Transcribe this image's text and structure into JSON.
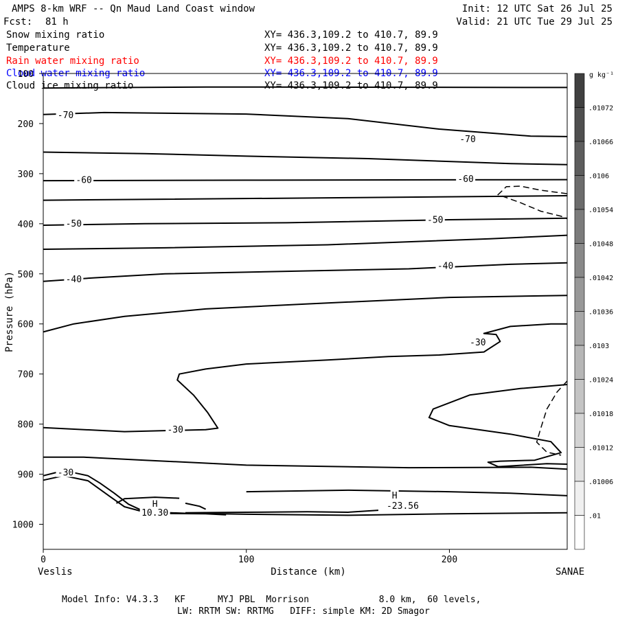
{
  "header": {
    "title": "AMPS 8-km WRF -- Qn Maud Land Coast window",
    "init": "Init: 12 UTC Sat 26 Jul 25",
    "fcst_label": "Fcst:",
    "fcst_value": "81 h",
    "valid": "Valid: 21 UTC Tue 29 Jul 25"
  },
  "fields": [
    {
      "name": "Snow mixing ratio",
      "xy": "XY= 436.3,109.2 to 410.7, 89.9",
      "color": "#000000"
    },
    {
      "name": "Temperature",
      "xy": "XY= 436.3,109.2 to 410.7, 89.9",
      "color": "#000000"
    },
    {
      "name": "Rain water mixing ratio",
      "xy": "XY= 436.3,109.2 to 410.7, 89.9",
      "color": "#ff0000"
    },
    {
      "name": "Cloud water mixing ratio",
      "xy": "XY= 436.3,109.2 to 410.7, 89.9",
      "color": "#0000ff"
    },
    {
      "name": "Cloud ice mixing ratio",
      "xy": "XY= 436.3,109.2 to 410.7, 89.9",
      "color": "#000000"
    }
  ],
  "footer": {
    "line1": "Model Info: V4.3.3   KF      MYJ PBL  Morrison             8.0 km,  60 levels,",
    "line2": "LW: RRTM SW: RRTMG   DIFF: simple KM: 2D Smagor"
  },
  "chart_data": {
    "type": "contour",
    "xlabel": "Distance (km)",
    "ylabel": "Pressure (hPa)",
    "xlim": [
      0,
      258
    ],
    "ylim": [
      1050,
      100
    ],
    "x_ticks": [
      0,
      100,
      200
    ],
    "y_ticks": [
      100,
      200,
      300,
      400,
      500,
      600,
      700,
      800,
      900,
      1000
    ],
    "x_endpoints": {
      "left": "Veslis",
      "right": "SANAE"
    },
    "colorbar": {
      "unit": "g kg⁻¹",
      "labels": [
        ".01072",
        ".01066",
        ".0106",
        ".01054",
        ".01048",
        ".01042",
        ".01036",
        ".0103",
        ".01024",
        ".01018",
        ".01012",
        ".01006",
        ".01"
      ],
      "top_color": "#404040",
      "bottom_color": "#ffffff",
      "steps": 13
    },
    "contour_labels": [
      {
        "text": "-70",
        "x": 11,
        "p": 182
      },
      {
        "text": "-70",
        "x": 209,
        "p": 230
      },
      {
        "text": "-60",
        "x": 20,
        "p": 312
      },
      {
        "text": "-60",
        "x": 208,
        "p": 310
      },
      {
        "text": "-50",
        "x": 15,
        "p": 399
      },
      {
        "text": "-50",
        "x": 193,
        "p": 391
      },
      {
        "text": "-40",
        "x": 15,
        "p": 510
      },
      {
        "text": "-40",
        "x": 198,
        "p": 483
      },
      {
        "text": "-30",
        "x": 214,
        "p": 636
      },
      {
        "text": "-30",
        "x": 65,
        "p": 810
      },
      {
        "text": "-30",
        "x": 11,
        "p": 896
      },
      {
        "text": "H",
        "x": 55,
        "p": 959
      },
      {
        "text": "10.30",
        "x": 55,
        "p": 976
      },
      {
        "text": "H",
        "x": 173,
        "p": 942
      },
      {
        "text": "-23.56",
        "x": 177,
        "p": 962
      }
    ],
    "contours": [
      [
        [
          0,
          129
        ],
        [
          80,
          127
        ],
        [
          258,
          128
        ]
      ],
      [
        [
          0,
          182
        ],
        [
          30,
          178
        ],
        [
          100,
          181
        ],
        [
          150,
          190
        ],
        [
          195,
          211
        ],
        [
          240,
          225
        ],
        [
          258,
          226
        ]
      ],
      [
        [
          0,
          257
        ],
        [
          50,
          260
        ],
        [
          100,
          265
        ],
        [
          160,
          270
        ],
        [
          230,
          280
        ],
        [
          258,
          282
        ]
      ],
      [
        [
          0,
          314
        ],
        [
          100,
          313
        ],
        [
          258,
          312
        ]
      ],
      [
        [
          0,
          353
        ],
        [
          60,
          351
        ],
        [
          150,
          348
        ],
        [
          258,
          344
        ]
      ],
      [
        [
          0,
          403
        ],
        [
          50,
          400
        ],
        [
          120,
          398
        ],
        [
          200,
          392
        ],
        [
          258,
          389
        ]
      ],
      [
        [
          0,
          451
        ],
        [
          60,
          448
        ],
        [
          140,
          442
        ],
        [
          220,
          430
        ],
        [
          258,
          423
        ]
      ],
      [
        [
          0,
          515
        ],
        [
          25,
          508
        ],
        [
          60,
          500
        ],
        [
          120,
          495
        ],
        [
          180,
          490
        ],
        [
          230,
          481
        ],
        [
          258,
          478
        ]
      ],
      [
        [
          0,
          616
        ],
        [
          15,
          600
        ],
        [
          40,
          585
        ],
        [
          80,
          570
        ],
        [
          130,
          560
        ],
        [
          200,
          547
        ],
        [
          258,
          543
        ]
      ],
      [
        [
          0,
          807
        ],
        [
          40,
          815
        ],
        [
          80,
          811
        ],
        [
          86,
          808
        ],
        [
          81,
          777
        ],
        [
          74,
          742
        ],
        [
          66,
          712
        ],
        [
          67,
          700
        ],
        [
          80,
          690
        ],
        [
          100,
          680
        ],
        [
          140,
          672
        ],
        [
          170,
          665
        ],
        [
          195,
          662
        ],
        [
          217,
          656
        ],
        [
          225,
          635
        ],
        [
          223,
          621
        ],
        [
          217,
          619
        ],
        [
          230,
          605
        ],
        [
          250,
          600
        ],
        [
          258,
          600
        ]
      ],
      [
        [
          258,
          721
        ],
        [
          235,
          729
        ],
        [
          210,
          742
        ],
        [
          192,
          770
        ],
        [
          190,
          787
        ],
        [
          200,
          803
        ],
        [
          230,
          820
        ],
        [
          250,
          835
        ],
        [
          255,
          857
        ],
        [
          242,
          872
        ],
        [
          225,
          874
        ],
        [
          219,
          876
        ],
        [
          224,
          885
        ],
        [
          248,
          879
        ],
        [
          258,
          880
        ]
      ],
      [
        [
          0,
          866
        ],
        [
          20,
          866
        ],
        [
          50,
          872
        ],
        [
          100,
          882
        ],
        [
          180,
          887
        ],
        [
          240,
          886
        ],
        [
          258,
          890
        ]
      ],
      [
        [
          0,
          903
        ],
        [
          6,
          897
        ],
        [
          14,
          896
        ],
        [
          22,
          903
        ],
        [
          28,
          918
        ],
        [
          35,
          938
        ],
        [
          42,
          960
        ],
        [
          50,
          975
        ],
        [
          70,
          978
        ],
        [
          100,
          980
        ],
        [
          150,
          982
        ],
        [
          200,
          979
        ],
        [
          258,
          977
        ]
      ],
      [
        [
          0,
          912
        ],
        [
          10,
          903
        ],
        [
          22,
          913
        ],
        [
          33,
          945
        ],
        [
          40,
          965
        ],
        [
          52,
          978
        ],
        [
          80,
          979
        ],
        [
          90,
          981
        ]
      ],
      [
        [
          36,
          958
        ],
        [
          40,
          949
        ],
        [
          55,
          946
        ],
        [
          67,
          948
        ]
      ],
      [
        [
          70,
          958
        ],
        [
          77,
          964
        ],
        [
          80,
          970
        ]
      ],
      [
        [
          70,
          977
        ],
        [
          100,
          976
        ],
        [
          130,
          975
        ],
        [
          150,
          976
        ],
        [
          165,
          972
        ]
      ],
      [
        [
          258,
          943
        ],
        [
          230,
          938
        ],
        [
          200,
          935
        ],
        [
          150,
          932
        ],
        [
          100,
          935
        ]
      ]
    ],
    "dashed_contours": [
      [
        [
          258,
          340
        ],
        [
          245,
          333
        ],
        [
          235,
          325
        ],
        [
          228,
          326
        ],
        [
          224,
          342
        ],
        [
          235,
          358
        ],
        [
          245,
          375
        ],
        [
          255,
          385
        ],
        [
          258,
          390
        ]
      ],
      [
        [
          258,
          714
        ],
        [
          253,
          736
        ],
        [
          248,
          770
        ],
        [
          245,
          808
        ],
        [
          243,
          836
        ],
        [
          248,
          856
        ],
        [
          255,
          862
        ]
      ]
    ]
  }
}
